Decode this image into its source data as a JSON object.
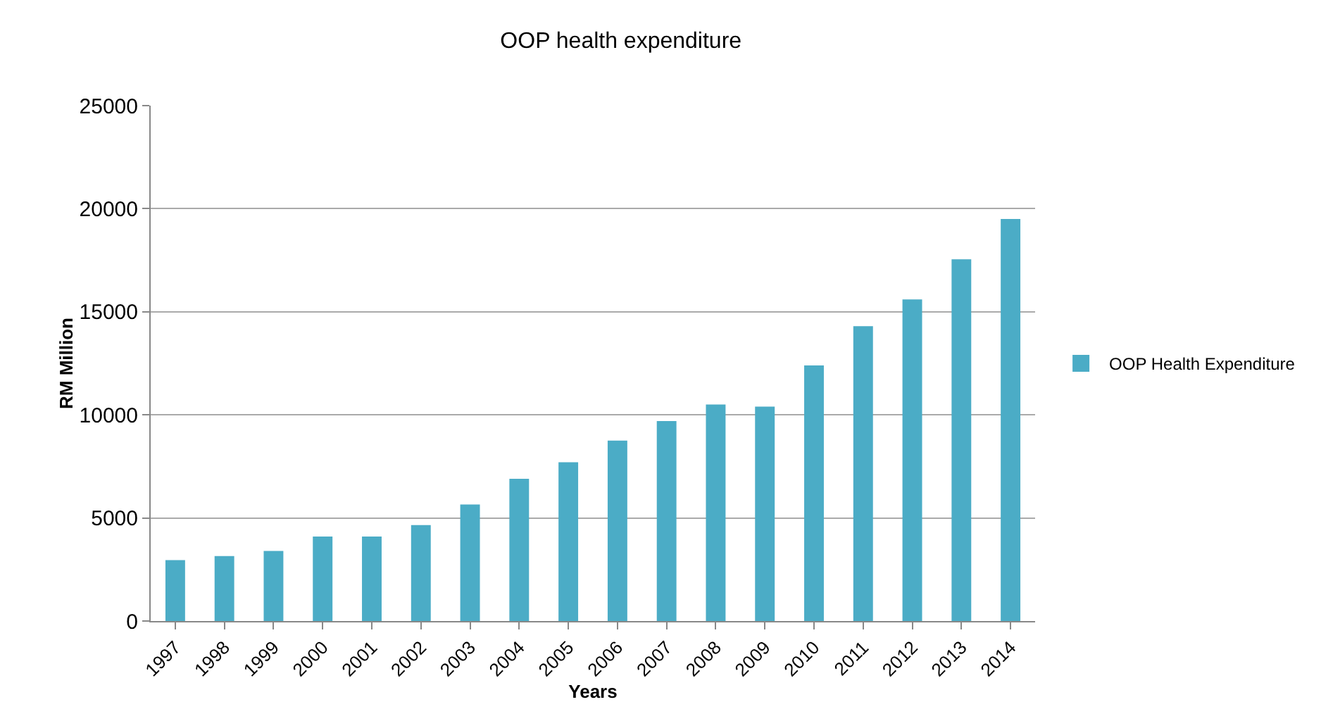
{
  "chart_data": {
    "type": "bar",
    "title": "OOP health expenditure",
    "xlabel": "Years",
    "ylabel": "RM Million",
    "categories": [
      "1997",
      "1998",
      "1999",
      "2000",
      "2001",
      "2002",
      "2003",
      "2004",
      "2005",
      "2006",
      "2007",
      "2008",
      "2009",
      "2010",
      "2011",
      "2012",
      "2013",
      "2014"
    ],
    "series": [
      {
        "name": "OOP Health Expenditure",
        "color": "#4bacc6",
        "values": [
          2950,
          3150,
          3400,
          4100,
          4100,
          4650,
          5650,
          6900,
          7700,
          8750,
          9700,
          10500,
          10400,
          12400,
          14300,
          15600,
          17550,
          19500
        ]
      }
    ],
    "ylim": [
      0,
      25000
    ],
    "yticks": [
      0,
      5000,
      10000,
      15000,
      20000,
      25000
    ],
    "grid": "y",
    "legend": "right"
  }
}
